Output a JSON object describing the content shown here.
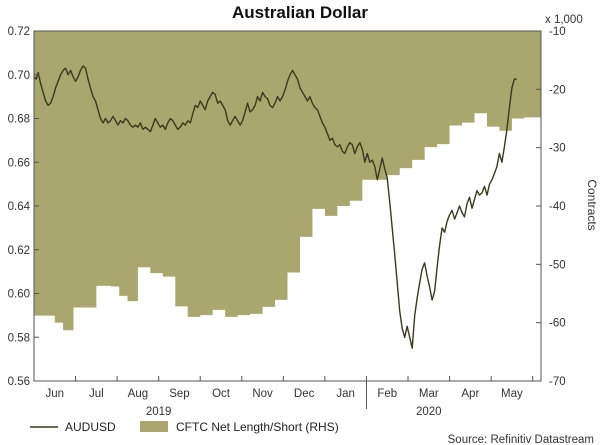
{
  "chart_data": {
    "type": "line+area",
    "title": "Australian Dollar",
    "right_axis_unit": "x 1,000",
    "right_axis_label": "Contracts",
    "left_ylim": [
      0.56,
      0.72
    ],
    "left_yticks": [
      "0.56",
      "0.58",
      "0.60",
      "0.62",
      "0.64",
      "0.66",
      "0.68",
      "0.70",
      "0.72"
    ],
    "right_ylim": [
      -70,
      -10
    ],
    "right_yticks": [
      "-70",
      "-60",
      "-50",
      "-40",
      "-30",
      "-20",
      "-10"
    ],
    "months": [
      "Jun",
      "Jul",
      "Aug",
      "Sep",
      "Oct",
      "Nov",
      "Dec",
      "Jan",
      "Feb",
      "Mar",
      "Apr",
      "May"
    ],
    "years": [
      "2019",
      "2020"
    ],
    "x_range_months": [
      0,
      12.2
    ],
    "colors": {
      "area": "#a9a76d",
      "line": "#3a3a1e",
      "axis": "#555555"
    },
    "series": [
      {
        "name": "AUDUSD",
        "axis": "left",
        "points": [
          [
            0.0,
            0.699
          ],
          [
            0.05,
            0.698
          ],
          [
            0.1,
            0.701
          ],
          [
            0.16,
            0.696
          ],
          [
            0.22,
            0.692
          ],
          [
            0.28,
            0.688
          ],
          [
            0.34,
            0.686
          ],
          [
            0.4,
            0.687
          ],
          [
            0.46,
            0.69
          ],
          [
            0.52,
            0.694
          ],
          [
            0.58,
            0.697
          ],
          [
            0.64,
            0.7
          ],
          [
            0.7,
            0.702
          ],
          [
            0.76,
            0.703
          ],
          [
            0.82,
            0.7
          ],
          [
            0.88,
            0.702
          ],
          [
            0.94,
            0.699
          ],
          [
            1.0,
            0.697
          ],
          [
            1.06,
            0.699
          ],
          [
            1.12,
            0.702
          ],
          [
            1.18,
            0.704
          ],
          [
            1.24,
            0.703
          ],
          [
            1.3,
            0.698
          ],
          [
            1.36,
            0.694
          ],
          [
            1.42,
            0.69
          ],
          [
            1.48,
            0.688
          ],
          [
            1.54,
            0.684
          ],
          [
            1.6,
            0.68
          ],
          [
            1.66,
            0.678
          ],
          [
            1.72,
            0.68
          ],
          [
            1.78,
            0.678
          ],
          [
            1.84,
            0.679
          ],
          [
            1.9,
            0.681
          ],
          [
            1.96,
            0.679
          ],
          [
            2.02,
            0.677
          ],
          [
            2.08,
            0.679
          ],
          [
            2.14,
            0.678
          ],
          [
            2.2,
            0.68
          ],
          [
            2.26,
            0.679
          ],
          [
            2.32,
            0.677
          ],
          [
            2.38,
            0.676
          ],
          [
            2.44,
            0.677
          ],
          [
            2.5,
            0.676
          ],
          [
            2.56,
            0.678
          ],
          [
            2.62,
            0.675
          ],
          [
            2.68,
            0.676
          ],
          [
            2.74,
            0.675
          ],
          [
            2.8,
            0.674
          ],
          [
            2.86,
            0.677
          ],
          [
            2.92,
            0.68
          ],
          [
            2.98,
            0.678
          ],
          [
            3.04,
            0.676
          ],
          [
            3.1,
            0.677
          ],
          [
            3.16,
            0.675
          ],
          [
            3.22,
            0.678
          ],
          [
            3.28,
            0.68
          ],
          [
            3.34,
            0.679
          ],
          [
            3.4,
            0.677
          ],
          [
            3.46,
            0.675
          ],
          [
            3.52,
            0.676
          ],
          [
            3.58,
            0.678
          ],
          [
            3.64,
            0.677
          ],
          [
            3.7,
            0.679
          ],
          [
            3.76,
            0.678
          ],
          [
            3.82,
            0.682
          ],
          [
            3.88,
            0.686
          ],
          [
            3.94,
            0.685
          ],
          [
            4.0,
            0.688
          ],
          [
            4.06,
            0.686
          ],
          [
            4.12,
            0.684
          ],
          [
            4.18,
            0.688
          ],
          [
            4.24,
            0.69
          ],
          [
            4.3,
            0.692
          ],
          [
            4.36,
            0.691
          ],
          [
            4.42,
            0.687
          ],
          [
            4.48,
            0.688
          ],
          [
            4.54,
            0.686
          ],
          [
            4.6,
            0.684
          ],
          [
            4.66,
            0.679
          ],
          [
            4.72,
            0.677
          ],
          [
            4.78,
            0.679
          ],
          [
            4.84,
            0.681
          ],
          [
            4.9,
            0.679
          ],
          [
            4.96,
            0.677
          ],
          [
            5.02,
            0.679
          ],
          [
            5.08,
            0.683
          ],
          [
            5.14,
            0.687
          ],
          [
            5.2,
            0.683
          ],
          [
            5.26,
            0.684
          ],
          [
            5.32,
            0.686
          ],
          [
            5.38,
            0.69
          ],
          [
            5.44,
            0.688
          ],
          [
            5.5,
            0.692
          ],
          [
            5.56,
            0.69
          ],
          [
            5.62,
            0.689
          ],
          [
            5.68,
            0.686
          ],
          [
            5.74,
            0.685
          ],
          [
            5.8,
            0.687
          ],
          [
            5.86,
            0.69
          ],
          [
            5.92,
            0.688
          ],
          [
            5.98,
            0.69
          ],
          [
            6.04,
            0.693
          ],
          [
            6.1,
            0.697
          ],
          [
            6.16,
            0.7
          ],
          [
            6.22,
            0.702
          ],
          [
            6.28,
            0.7
          ],
          [
            6.34,
            0.698
          ],
          [
            6.4,
            0.694
          ],
          [
            6.46,
            0.692
          ],
          [
            6.52,
            0.69
          ],
          [
            6.58,
            0.688
          ],
          [
            6.64,
            0.69
          ],
          [
            6.7,
            0.687
          ],
          [
            6.76,
            0.685
          ],
          [
            6.82,
            0.684
          ],
          [
            6.88,
            0.681
          ],
          [
            6.94,
            0.678
          ],
          [
            7.0,
            0.676
          ],
          [
            7.06,
            0.673
          ],
          [
            7.12,
            0.67
          ],
          [
            7.18,
            0.671
          ],
          [
            7.24,
            0.668
          ],
          [
            7.3,
            0.667
          ],
          [
            7.36,
            0.668
          ],
          [
            7.42,
            0.665
          ],
          [
            7.48,
            0.664
          ],
          [
            7.54,
            0.667
          ],
          [
            7.6,
            0.669
          ],
          [
            7.66,
            0.668
          ],
          [
            7.72,
            0.664
          ],
          [
            7.78,
            0.667
          ],
          [
            7.84,
            0.669
          ],
          [
            7.9,
            0.666
          ],
          [
            7.96,
            0.66
          ],
          [
            8.02,
            0.664
          ],
          [
            8.08,
            0.66
          ],
          [
            8.14,
            0.661
          ],
          [
            8.2,
            0.658
          ],
          [
            8.26,
            0.652
          ],
          [
            8.32,
            0.657
          ],
          [
            8.38,
            0.662
          ],
          [
            8.44,
            0.657
          ],
          [
            8.5,
            0.653
          ],
          [
            8.56,
            0.642
          ],
          [
            8.62,
            0.63
          ],
          [
            8.68,
            0.618
          ],
          [
            8.74,
            0.605
          ],
          [
            8.8,
            0.592
          ],
          [
            8.86,
            0.584
          ],
          [
            8.92,
            0.58
          ],
          [
            8.98,
            0.585
          ],
          [
            9.04,
            0.58
          ],
          [
            9.1,
            0.575
          ],
          [
            9.16,
            0.59
          ],
          [
            9.22,
            0.598
          ],
          [
            9.28,
            0.605
          ],
          [
            9.34,
            0.611
          ],
          [
            9.4,
            0.614
          ],
          [
            9.46,
            0.608
          ],
          [
            9.52,
            0.603
          ],
          [
            9.58,
            0.597
          ],
          [
            9.64,
            0.601
          ],
          [
            9.7,
            0.612
          ],
          [
            9.76,
            0.622
          ],
          [
            9.82,
            0.63
          ],
          [
            9.88,
            0.628
          ],
          [
            9.94,
            0.633
          ],
          [
            10.0,
            0.636
          ],
          [
            10.06,
            0.638
          ],
          [
            10.12,
            0.634
          ],
          [
            10.18,
            0.637
          ],
          [
            10.24,
            0.64
          ],
          [
            10.3,
            0.637
          ],
          [
            10.36,
            0.635
          ],
          [
            10.42,
            0.641
          ],
          [
            10.48,
            0.644
          ],
          [
            10.54,
            0.639
          ],
          [
            10.6,
            0.643
          ],
          [
            10.66,
            0.647
          ],
          [
            10.72,
            0.645
          ],
          [
            10.78,
            0.646
          ],
          [
            10.84,
            0.649
          ],
          [
            10.9,
            0.645
          ],
          [
            10.96,
            0.65
          ],
          [
            11.02,
            0.652
          ],
          [
            11.08,
            0.655
          ],
          [
            11.14,
            0.658
          ],
          [
            11.2,
            0.664
          ],
          [
            11.26,
            0.66
          ],
          [
            11.32,
            0.667
          ],
          [
            11.38,
            0.675
          ],
          [
            11.44,
            0.685
          ],
          [
            11.5,
            0.694
          ],
          [
            11.56,
            0.698
          ],
          [
            11.62,
            0.698
          ]
        ]
      },
      {
        "name": "CFTC Net Length/Short (RHS)",
        "axis": "right",
        "style": "step-area",
        "points": [
          [
            0.0,
            -58.8
          ],
          [
            0.5,
            -60.0
          ],
          [
            0.7,
            -61.3
          ],
          [
            0.95,
            -57.4
          ],
          [
            1.25,
            -57.4
          ],
          [
            1.5,
            -53.7
          ],
          [
            1.85,
            -53.8
          ],
          [
            2.05,
            -55.4
          ],
          [
            2.25,
            -56.3
          ],
          [
            2.5,
            -50.5
          ],
          [
            2.8,
            -51.5
          ],
          [
            3.1,
            -52.1
          ],
          [
            3.4,
            -57.2
          ],
          [
            3.7,
            -59.0
          ],
          [
            4.0,
            -58.7
          ],
          [
            4.3,
            -57.8
          ],
          [
            4.6,
            -59.0
          ],
          [
            4.9,
            -58.7
          ],
          [
            5.2,
            -58.5
          ],
          [
            5.5,
            -57.3
          ],
          [
            5.8,
            -56.1
          ],
          [
            6.1,
            -51.4
          ],
          [
            6.4,
            -45.3
          ],
          [
            6.7,
            -40.5
          ],
          [
            7.0,
            -41.7
          ],
          [
            7.3,
            -40.0
          ],
          [
            7.6,
            -39.1
          ],
          [
            7.9,
            -35.5
          ],
          [
            8.2,
            -35.5
          ],
          [
            8.5,
            -34.7
          ],
          [
            8.8,
            -33.5
          ],
          [
            9.1,
            -32.1
          ],
          [
            9.4,
            -29.9
          ],
          [
            9.7,
            -29.4
          ],
          [
            10.0,
            -26.2
          ],
          [
            10.3,
            -25.7
          ],
          [
            10.6,
            -24.1
          ],
          [
            10.9,
            -26.4
          ],
          [
            11.2,
            -27.1
          ],
          [
            11.5,
            -25.0
          ],
          [
            11.8,
            -24.8
          ],
          [
            12.2,
            -24.8
          ]
        ]
      }
    ],
    "legend": [
      "AUDUSD",
      "CFTC Net Length/Short (RHS)"
    ],
    "source": "Source: Refinitiv Datastream"
  }
}
